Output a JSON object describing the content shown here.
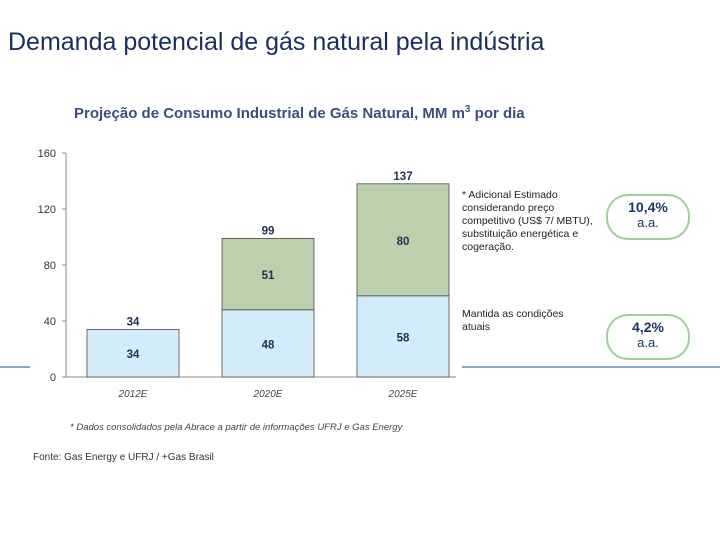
{
  "slide_title": "Demanda potencial de gás natural pela indústria",
  "chart_data": {
    "type": "bar",
    "stacked": true,
    "title": "Projeção de Consumo Industrial de Gás Natural, MM m³ por dia",
    "title_main": "Projeção de Consumo Industrial de Gás Natural, MM m",
    "title_sup": "3",
    "title_tail": " por dia",
    "categories": [
      "2012E",
      "2020E",
      "2025E"
    ],
    "series": [
      {
        "name": "Mantida as condições atuais",
        "color": "#d3ecfa",
        "values": [
          34,
          48,
          58
        ]
      },
      {
        "name": "Adicional Estimado",
        "color": "#bcd0ae",
        "values": [
          null,
          51,
          80
        ]
      }
    ],
    "totals": [
      "34",
      "99",
      "137"
    ],
    "ylim": [
      0,
      160
    ],
    "yticks": [
      0,
      40,
      80,
      120,
      160
    ],
    "footnote": "* Dados consolidados pela Abrace a partir de informações UFRJ e Gas Energy"
  },
  "annotations": {
    "additional": "* Adicional Estimado considerando preço competitivo (US$ 7/ MBTU), substituição energética e cogeração.",
    "maintained": "Mantida as condições atuais"
  },
  "badges": [
    {
      "pct": "10,4%",
      "unit": "a.a."
    },
    {
      "pct": "4,2%",
      "unit": "a.a."
    }
  ],
  "source": "Fonte: Gas Energy e UFRJ / +Gas Brasil",
  "colors": {
    "title": "#1a2f5a",
    "badge_border": "#9fd09c",
    "base_segment": "#d3ecfa",
    "added_segment": "#bcd0ae"
  }
}
